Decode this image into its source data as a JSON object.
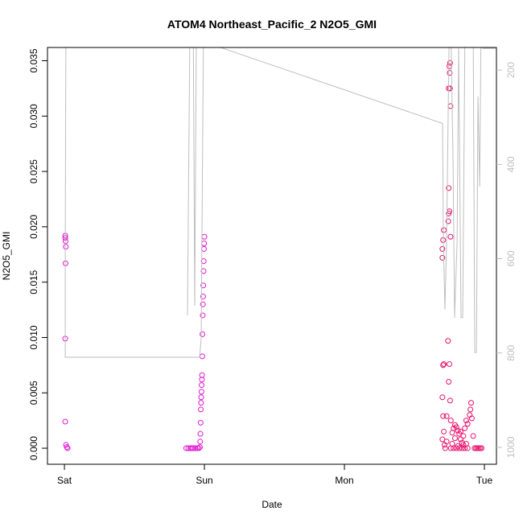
{
  "chart_data": {
    "type": "scatter",
    "title": "ATOM4 Northeast_Pacific_2 N2O5_GMI",
    "xlabel": "Date",
    "ylabel": "N2O5_GMI",
    "xlim": [
      -0.121,
      3.086
    ],
    "xticks": [
      {
        "value": 0,
        "label": "Sat"
      },
      {
        "value": 1,
        "label": "Sun"
      },
      {
        "value": 2,
        "label": "Mon"
      },
      {
        "value": 3,
        "label": "Tue"
      }
    ],
    "ylim": [
      -0.00145,
      0.0362
    ],
    "yticks": [
      {
        "value": 0,
        "label": "0.000"
      },
      {
        "value": 0.005,
        "label": "0.005"
      },
      {
        "value": 0.01,
        "label": "0.010"
      },
      {
        "value": 0.015,
        "label": "0.015"
      },
      {
        "value": 0.02,
        "label": "0.020"
      },
      {
        "value": 0.025,
        "label": "0.025"
      },
      {
        "value": 0.03,
        "label": "0.030"
      },
      {
        "value": 0.035,
        "label": "0.035"
      }
    ],
    "y2lim": [
      1036,
      152
    ],
    "y2ticks": [
      200,
      400,
      600,
      800,
      1000
    ],
    "y2color": "#bebebe",
    "series": [
      {
        "color": "#e01ad2",
        "x": [
          0.006,
          0.006,
          0.008,
          0.01,
          0.008,
          0.006,
          0.006,
          0.011,
          0.017,
          0.023,
          0.87,
          0.885,
          0.9,
          0.91,
          0.92,
          0.935,
          0.95,
          0.96,
          0.968,
          0.97,
          0.971,
          0.973,
          0.974,
          0.976,
          0.977,
          0.979,
          0.98,
          0.982,
          0.983,
          0.985,
          0.986,
          0.988,
          0.989,
          0.991,
          0.992,
          0.994,
          0.995,
          0.997,
          0.998,
          1.0
        ],
        "values": [
          0.0192,
          0.019,
          0.0187,
          0.0182,
          0.0167,
          0.0099,
          0.0024,
          0.0003,
          0.0001,
          0,
          0,
          0,
          0,
          0,
          0,
          0,
          0,
          0,
          0.0001,
          0.0006,
          0.0013,
          0.0023,
          0.0035,
          0.0041,
          0.0046,
          0.0051,
          0.0057,
          0.0062,
          0.0066,
          0.0083,
          0.0103,
          0.012,
          0.013,
          0.0137,
          0.0147,
          0.016,
          0.0169,
          0.018,
          0.0185,
          0.0191
        ]
      },
      {
        "color": "#e8136e",
        "x": [
          2.7,
          2.7,
          2.705,
          2.71,
          2.705,
          2.71,
          2.7,
          2.705,
          2.71,
          2.7,
          2.715,
          2.72,
          2.73,
          2.745,
          2.75,
          2.742,
          2.745,
          2.74,
          2.745,
          2.75,
          2.755,
          2.745,
          2.755,
          2.75,
          2.755,
          2.752,
          2.758,
          2.758,
          2.76,
          2.77,
          2.78,
          2.79,
          2.8,
          2.81,
          2.82,
          2.83,
          2.84,
          2.85,
          2.86,
          2.87,
          2.88,
          2.895,
          2.9,
          2.905,
          2.91,
          2.92,
          2.93,
          2.94,
          2.95,
          2.96,
          2.97,
          2.98,
          2.76,
          2.78,
          2.8,
          2.82,
          2.84,
          2.86,
          2.88,
          2.73,
          2.77,
          2.79,
          2.81,
          2.83,
          2.85,
          2.87
        ],
        "values": [
          0.0172,
          0.018,
          0.0188,
          0.0197,
          0.0075,
          0.0076,
          0.0046,
          0.0029,
          0.0015,
          0.0008,
          0.0003,
          0,
          0.0029,
          0.0212,
          0.0214,
          0.0205,
          0.0235,
          0.0097,
          0.006,
          0.0076,
          0.0043,
          0.0325,
          0.0325,
          0.0345,
          0.0348,
          0.0339,
          0.0309,
          0.0191,
          0.0025,
          0.0014,
          0.0018,
          0.0021,
          0.0019,
          0.0016,
          0.0013,
          0.0008,
          0.0005,
          0.0003,
          0.0018,
          0.0025,
          0.0022,
          0.003,
          0.0035,
          0.0041,
          0.0027,
          0.0011,
          0,
          0,
          0,
          0,
          0,
          0,
          0,
          0,
          0,
          0,
          0,
          0,
          0,
          0.0006,
          0.0004,
          0.0009,
          0.0002,
          0.0015,
          0.0011,
          0.0004
        ]
      },
      {
        "type": "line",
        "axis": "y2",
        "color": "#bebebe",
        "x": [
          0.011,
          0.006,
          0.006,
          0.966,
          0.977,
          0.994,
          null,
          0.879,
          0.897,
          0.92,
          0.931,
          0.943,
          null,
          1.046,
          2.701,
          2.707,
          2.718,
          2.73,
          2.747,
          2.759,
          2.776,
          2.787,
          2.805,
          2.816,
          2.833,
          2.845,
          2.862,
          2.891,
          2.92,
          2.931,
          2.943,
          2.954,
          2.966,
          2.977,
          2.989,
          3.08
        ],
        "values": [
          86,
          563,
          809,
          809,
          768,
          86,
          null,
          720,
          86,
          86,
          700,
          86,
          null,
          145,
          313,
          563,
          708,
          563,
          154,
          86,
          393,
          725,
          563,
          154,
          725,
          725,
          86,
          86,
          120,
          799,
          799,
          256,
          447,
          86,
          154,
          154
        ]
      }
    ]
  }
}
